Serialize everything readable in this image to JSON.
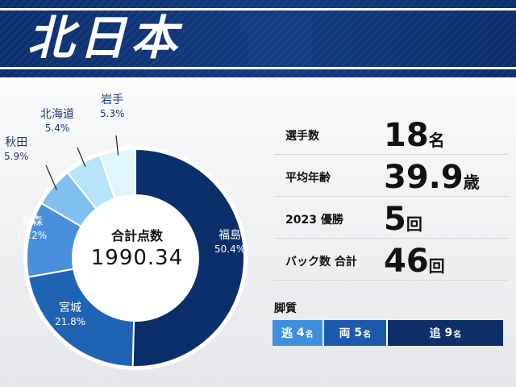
{
  "header": {
    "title": "北日本"
  },
  "chart_data": {
    "type": "pie",
    "center_label": "合計点数",
    "center_value": "1990.34",
    "categories": [
      "福島",
      "宮城",
      "青森",
      "秋田",
      "北海道",
      "岩手"
    ],
    "values": [
      50.4,
      21.8,
      11.2,
      5.9,
      5.4,
      5.3
    ],
    "value_labels": [
      "50.4%",
      "21.8%",
      "11.2%",
      "5.9%",
      "5.4%",
      "5.3%"
    ],
    "colors": [
      "#0b2f6b",
      "#1f63b4",
      "#4a8fdc",
      "#7fc0f0",
      "#b7e4f8",
      "#def6fc"
    ]
  },
  "stats": [
    {
      "label": "選手数",
      "value": "18",
      "unit": "名"
    },
    {
      "label": "平均年齢",
      "value": "39.9",
      "unit": "歳"
    },
    {
      "label": "2023 優勝",
      "value": "5",
      "unit": "回"
    },
    {
      "label": "バック数 合計",
      "value": "46",
      "unit": "回"
    }
  ],
  "kyakushitsu": {
    "title": "脚質",
    "segments": [
      {
        "label": "逃",
        "count": "4",
        "unit": "名",
        "value": 4,
        "color": "#3f8fdc"
      },
      {
        "label": "両",
        "count": "5",
        "unit": "名",
        "value": 5,
        "color": "#1d5aae"
      },
      {
        "label": "追",
        "count": "9",
        "unit": "名",
        "value": 9,
        "color": "#0d2f6a"
      }
    ]
  }
}
